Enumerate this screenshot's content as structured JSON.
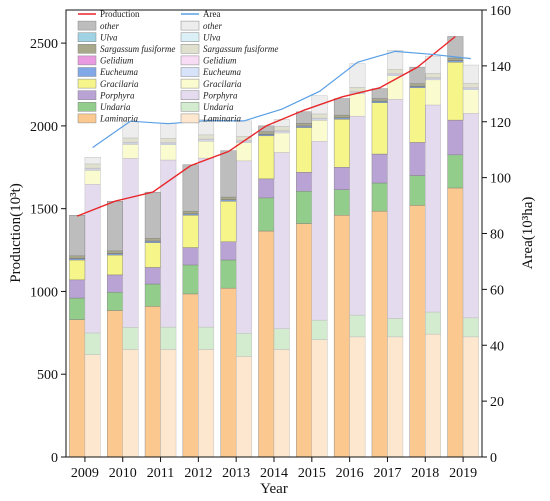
{
  "chart_data": {
    "type": "bar",
    "title": "",
    "xlabel": "Year",
    "ylabel_left": "Production(10³t)",
    "ylabel_right": "Area(10³ha)",
    "categories": [
      "2009",
      "2010",
      "2011",
      "2012",
      "2013",
      "2014",
      "2015",
      "2016",
      "2017",
      "2018",
      "2019"
    ],
    "ylim_left": [
      0,
      2700
    ],
    "ylim_right": [
      0,
      160
    ],
    "left_ticks": [
      "0",
      "500",
      "1000",
      "1500",
      "2000",
      "2500"
    ],
    "right_ticks": [
      "0",
      "20",
      "40",
      "60",
      "80",
      "100",
      "120",
      "140",
      "160"
    ],
    "stack_order": [
      "Laminaria",
      "Undaria",
      "Porphyra",
      "Gracilaria",
      "Eucheuma",
      "Gelidium",
      "Sargassum fusiforme",
      "Ulva",
      "other"
    ],
    "production_series": [
      {
        "name": "Laminaria",
        "values": [
          830,
          885,
          910,
          985,
          1020,
          1365,
          1410,
          1460,
          1485,
          1520,
          1625
        ]
      },
      {
        "name": "Undaria",
        "values": [
          130,
          110,
          135,
          175,
          170,
          200,
          195,
          155,
          170,
          180,
          200
        ]
      },
      {
        "name": "Porphyra",
        "values": [
          110,
          105,
          100,
          105,
          110,
          115,
          115,
          135,
          175,
          200,
          210
        ]
      },
      {
        "name": "Gracilaria",
        "values": [
          120,
          120,
          150,
          195,
          245,
          260,
          270,
          290,
          310,
          330,
          350
        ]
      },
      {
        "name": "Eucheuma",
        "values": [
          8,
          8,
          8,
          8,
          8,
          8,
          8,
          8,
          8,
          8,
          8
        ]
      },
      {
        "name": "Gelidium",
        "values": [
          2,
          2,
          2,
          2,
          2,
          2,
          2,
          2,
          2,
          2,
          2
        ]
      },
      {
        "name": "Sargassum fusiforme",
        "values": [
          15,
          15,
          15,
          15,
          15,
          15,
          15,
          15,
          15,
          15,
          15
        ]
      },
      {
        "name": "Ulva",
        "values": [
          0,
          0,
          0,
          0,
          0,
          0,
          0,
          0,
          0,
          0,
          0
        ]
      },
      {
        "name": "other",
        "values": [
          245,
          300,
          280,
          280,
          280,
          35,
          70,
          100,
          60,
          100,
          130
        ]
      }
    ],
    "area_series": [
      {
        "name": "Laminaria",
        "values": [
          36.6,
          38.5,
          38.5,
          38.5,
          36.0,
          38.5,
          42.0,
          43.0,
          43.0,
          44.0,
          43.0
        ]
      },
      {
        "name": "Undaria",
        "values": [
          7.8,
          7.9,
          8.0,
          8.0,
          8.3,
          7.4,
          7.0,
          7.8,
          6.6,
          7.9,
          6.8
        ]
      },
      {
        "name": "Porphyra",
        "values": [
          53.2,
          60.5,
          59.8,
          60.5,
          61.7,
          63.1,
          64.0,
          71.2,
          78.4,
          74.1,
          73.2
        ]
      },
      {
        "name": "Gracilaria",
        "values": [
          5.0,
          5.0,
          5.5,
          6.0,
          6.5,
          7.0,
          7.5,
          8.0,
          8.5,
          9.0,
          8.5
        ]
      },
      {
        "name": "Eucheuma",
        "values": [
          0.5,
          0.5,
          0.5,
          0.5,
          0.5,
          0.5,
          0.5,
          0.5,
          0.5,
          0.5,
          0.5
        ]
      },
      {
        "name": "Gelidium",
        "values": [
          0.3,
          0.3,
          0.3,
          0.3,
          0.3,
          0.3,
          0.3,
          0.3,
          0.3,
          0.3,
          0.3
        ]
      },
      {
        "name": "Sargassum fusiforme",
        "values": [
          1.5,
          1.5,
          1.5,
          1.5,
          1.5,
          1.5,
          1.5,
          1.5,
          1.5,
          1.5,
          1.5
        ]
      },
      {
        "name": "Ulva",
        "values": [
          0,
          0,
          0,
          0,
          0,
          0,
          0,
          0,
          0,
          0,
          0
        ]
      },
      {
        "name": "other",
        "values": [
          2.4,
          6.0,
          5.4,
          5.5,
          5.5,
          2.5,
          6.5,
          8.5,
          6.8,
          6.2,
          6.5
        ]
      }
    ],
    "production_total_line": {
      "name": "Production",
      "color": "#e8262a",
      "values": [
        1455,
        1545,
        1600,
        1760,
        1845,
        2000,
        2095,
        2175,
        2230,
        2355,
        2540
      ]
    },
    "area_total_line": {
      "name": "Area",
      "color": "#5aa0e6",
      "values": [
        110.8,
        120.2,
        119.3,
        120.4,
        120.3,
        124.5,
        130.9,
        141.3,
        145.2,
        144.1,
        142.6
      ]
    },
    "legend_left": [
      {
        "name": "Production",
        "kind": "line",
        "color": "#e8262a"
      },
      {
        "name": "other",
        "kind": "box",
        "color": "#bdbdbd"
      },
      {
        "name": "Ulva",
        "kind": "box",
        "color": "#9fd3e3"
      },
      {
        "name": "Sargassum fusiforme",
        "kind": "box",
        "color": "#a8a88a"
      },
      {
        "name": "Gelidium",
        "kind": "box",
        "color": "#e99ae0"
      },
      {
        "name": "Eucheuma",
        "kind": "box",
        "color": "#82a8e8"
      },
      {
        "name": "Gracilaria",
        "kind": "box",
        "color": "#f6f58a"
      },
      {
        "name": "Porphyra",
        "kind": "box",
        "color": "#b9a2d4"
      },
      {
        "name": "Undaria",
        "kind": "box",
        "color": "#93cd8c"
      },
      {
        "name": "Laminaria",
        "kind": "box",
        "color": "#fbc98f"
      }
    ],
    "legend_right": [
      {
        "name": "Area",
        "kind": "line",
        "color": "#5aa0e6"
      },
      {
        "name": "other",
        "kind": "box",
        "color": "#ededed"
      },
      {
        "name": "Ulva",
        "kind": "box",
        "color": "#daf0f6"
      },
      {
        "name": "Sargassum fusiforme",
        "kind": "box",
        "color": "#e0e0cf"
      },
      {
        "name": "Gelidium",
        "kind": "box",
        "color": "#f8dcf5"
      },
      {
        "name": "Eucheuma",
        "kind": "box",
        "color": "#d6e3f8"
      },
      {
        "name": "Gracilaria",
        "kind": "box",
        "color": "#fbfbd0"
      },
      {
        "name": "Porphyra",
        "kind": "box",
        "color": "#e4dbef"
      },
      {
        "name": "Undaria",
        "kind": "box",
        "color": "#d3ecd0"
      },
      {
        "name": "Laminaria",
        "kind": "box",
        "color": "#fde8cf"
      }
    ],
    "colors_production": {
      "Laminaria": "#fbc98f",
      "Undaria": "#93cd8c",
      "Porphyra": "#b9a2d4",
      "Gracilaria": "#f6f58a",
      "Eucheuma": "#82a8e8",
      "Gelidium": "#e99ae0",
      "Sargassum fusiforme": "#a8a88a",
      "Ulva": "#9fd3e3",
      "other": "#bdbdbd"
    },
    "colors_area": {
      "Laminaria": "#fde8cf",
      "Undaria": "#d3ecd0",
      "Porphyra": "#e4dbef",
      "Gracilaria": "#fbfbd0",
      "Eucheuma": "#d6e3f8",
      "Gelidium": "#f8dcf5",
      "Sargassum fusiforme": "#e0e0cf",
      "Ulva": "#daf0f6",
      "other": "#ededed"
    },
    "grid": false
  }
}
